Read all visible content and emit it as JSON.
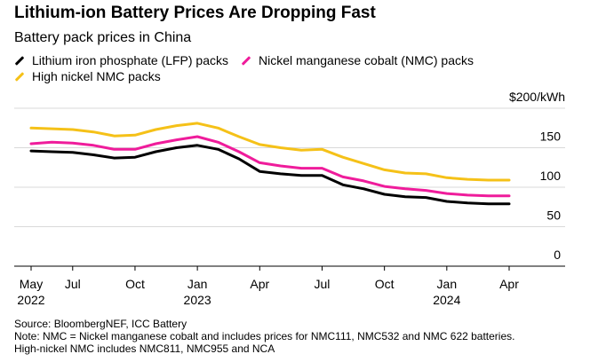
{
  "chart_data": {
    "type": "line",
    "title": "Lithium-ion Battery Prices Are Dropping Fast",
    "subtitle": "Battery pack prices in China",
    "unit_label": "$200/kWh",
    "ylim": [
      0,
      200
    ],
    "yticks": [
      {
        "value": 150,
        "label": "150"
      },
      {
        "value": 100,
        "label": "100"
      },
      {
        "value": 50,
        "label": "50"
      },
      {
        "value": 0,
        "label": "0"
      }
    ],
    "xlim": [
      0,
      23
    ],
    "xticks": [
      {
        "x": 0,
        "label": "May",
        "sub": "2022"
      },
      {
        "x": 2,
        "label": "Jul",
        "sub": ""
      },
      {
        "x": 5,
        "label": "Oct",
        "sub": ""
      },
      {
        "x": 8,
        "label": "Jan",
        "sub": "2023"
      },
      {
        "x": 11,
        "label": "Apr",
        "sub": ""
      },
      {
        "x": 14,
        "label": "Jul",
        "sub": ""
      },
      {
        "x": 17,
        "label": "Oct",
        "sub": ""
      },
      {
        "x": 20,
        "label": "Jan",
        "sub": "2024"
      },
      {
        "x": 23,
        "label": "Apr",
        "sub": ""
      }
    ],
    "x": [
      0,
      1,
      2,
      3,
      4,
      5,
      6,
      7,
      8,
      9,
      10,
      11,
      12,
      13,
      14,
      15,
      16,
      17,
      18,
      19,
      20,
      21,
      22,
      23
    ],
    "series": [
      {
        "name": "High nickel NMC packs",
        "color": "#f5c118",
        "values": [
          175,
          174,
          173,
          170,
          165,
          166,
          173,
          178,
          181,
          175,
          164,
          154,
          150,
          147,
          148,
          138,
          130,
          122,
          118,
          117,
          112,
          110,
          109,
          109
        ]
      },
      {
        "name": "Nickel manganese cobalt (NMC) packs",
        "color": "#ef1c9b",
        "values": [
          155,
          157,
          156,
          153,
          148,
          148,
          155,
          160,
          164,
          157,
          145,
          131,
          127,
          124,
          124,
          113,
          108,
          101,
          98,
          96,
          92,
          90,
          89,
          89
        ]
      },
      {
        "name": "Lithium iron phosphate (LFP) packs",
        "color": "#000000",
        "values": [
          146,
          145,
          144,
          141,
          137,
          138,
          145,
          150,
          153,
          148,
          136,
          120,
          117,
          115,
          115,
          103,
          98,
          91,
          88,
          87,
          82,
          80,
          79,
          79
        ]
      }
    ],
    "legend": [
      {
        "label": "Lithium iron phosphate (LFP) packs",
        "color": "#000000"
      },
      {
        "label": "Nickel manganese cobalt (NMC) packs",
        "color": "#ef1c9b"
      },
      {
        "label": "High nickel NMC packs",
        "color": "#f5c118"
      }
    ],
    "source": "Source: BloombergNEF, ICC Battery",
    "note1": "Note: NMC = Nickel manganese cobalt and includes prices for NMC111, NMC532 and NMC 622 batteries.",
    "note2": "High-nickel NMC includes NMC811, NMC955 and NCA"
  }
}
